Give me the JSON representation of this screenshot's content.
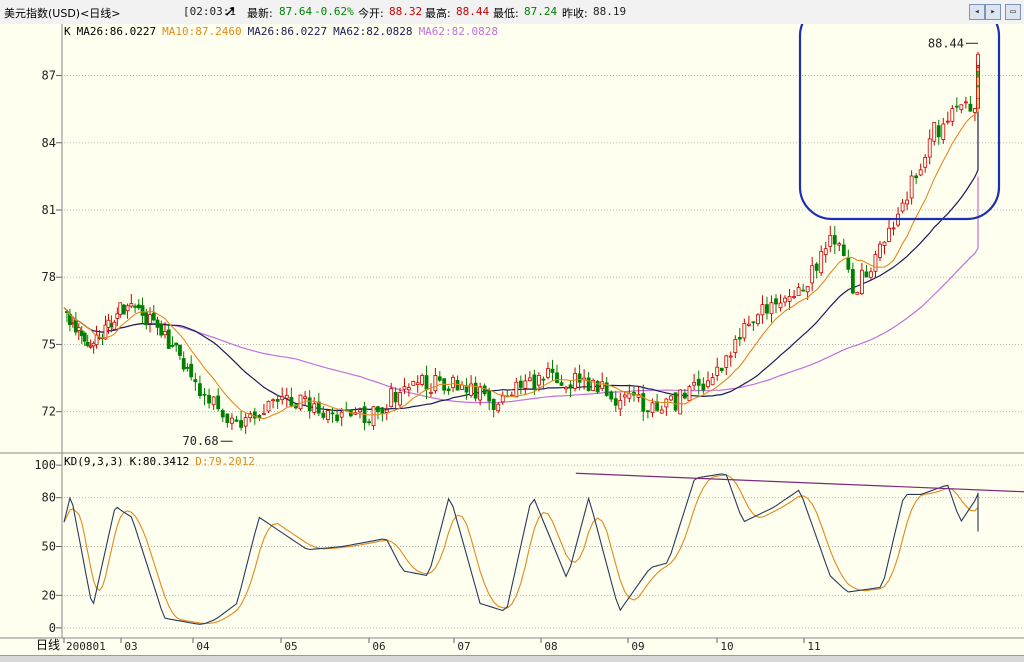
{
  "header": {
    "title": "美元指数(USD)<日线>",
    "time": "[02:03:1",
    "latest_label": "最新:",
    "latest_value": "87.64",
    "change": "-0.62%",
    "open_label": "今开:",
    "open_value": "88.32",
    "high_label": "最高:",
    "high_value": "88.44",
    "low_label": "最低:",
    "low_value": "87.24",
    "prev_label": "昨收:",
    "prev_value": "88.19",
    "buttons": [
      "◂",
      "▸",
      "▭"
    ]
  },
  "ma_legend": [
    {
      "text": "K",
      "color": "#000000"
    },
    {
      "text": "MA26:86.0227",
      "color": "#000000"
    },
    {
      "text": "MA10:87.2460",
      "color": "#e08a1e"
    },
    {
      "text": "MA26:86.0227",
      "color": "#1a1a5c"
    },
    {
      "text": "MA62:82.0828",
      "color": "#1a1a5c"
    },
    {
      "text": "MA62:82.0828",
      "color": "#c070e0"
    }
  ],
  "kd_legend": [
    {
      "text": "KD(9,3,3)",
      "color": "#000000"
    },
    {
      "text": "K:80.3412",
      "color": "#000000"
    },
    {
      "text": "D:79.2012",
      "color": "#e08a1e"
    }
  ],
  "annotations": {
    "high": "88.44",
    "low": "70.68"
  },
  "footer": {
    "period_label": "日线"
  },
  "colors": {
    "background": "#fffff0",
    "up": "#cc0000",
    "down": "#008000",
    "ma10": "#e08a1e",
    "ma26": "#1a1a5c",
    "ma62": "#c070e0",
    "k_line": "#2a3a5a",
    "d_line": "#e08a1e",
    "highlight": "#1c2fb5"
  },
  "chart_data": [
    {
      "type": "candlestick",
      "title": "美元指数(USD)<日线>",
      "x_tick_labels": [
        "200801",
        "03",
        "04",
        "05",
        "06",
        "07",
        "08",
        "09",
        "10",
        "11"
      ],
      "y_ticks": [
        72,
        75,
        78,
        81,
        84,
        87
      ],
      "ylim": [
        70.2,
        89.3
      ],
      "grid": true,
      "close_anchor_months": [
        0,
        0.5,
        1,
        1.5,
        2,
        2.5,
        3,
        3.5,
        4,
        4.5,
        5,
        5.5,
        6,
        6.5,
        7,
        7.5,
        8,
        8.5,
        9,
        9.3,
        9.6,
        10,
        10.5,
        11,
        11.5,
        11.9
      ],
      "close_anchor_values": [
        76.4,
        75.1,
        76.6,
        76.0,
        73.5,
        71.3,
        72.7,
        72.0,
        71.8,
        73.4,
        73.1,
        72.4,
        73.6,
        73.3,
        72.4,
        72.3,
        73.8,
        76.6,
        77.2,
        80.0,
        77.4,
        80.3,
        84.5,
        85.9,
        86.8,
        88.2
      ],
      "series": [
        {
          "name": "MA10",
          "value": 87.246
        },
        {
          "name": "MA26",
          "value": 86.0227
        },
        {
          "name": "MA62",
          "value": 82.0828
        }
      ],
      "annotations": [
        {
          "text": "88.44",
          "x_month": 11.85,
          "y": 88.44
        },
        {
          "text": "70.68",
          "x_month": 2.45,
          "y": 70.68
        }
      ],
      "highlight_box_months": [
        9.0,
        11.7
      ]
    },
    {
      "type": "line",
      "title": "KD(9,3,3)",
      "y_ticks": [
        0,
        20,
        50,
        80,
        100
      ],
      "ylim": [
        -5,
        105
      ],
      "k_anchor_months": [
        0,
        0.12,
        0.5,
        0.9,
        1.15,
        1.6,
        2.1,
        2.25,
        2.5,
        2.75,
        3.3,
        3.7,
        4.2,
        4.4,
        4.7,
        4.95,
        5.3,
        5.6,
        5.9,
        6.3,
        6.55,
        6.9,
        7.25,
        7.45,
        7.75,
        8.1,
        8.3,
        8.65,
        8.95,
        9.3,
        9.5,
        9.9,
        10.15,
        10.35,
        10.65,
        10.8,
        11.05,
        11.3,
        11.6,
        11.85
      ],
      "k_anchor_values": [
        65,
        82,
        12,
        75,
        68,
        6,
        2,
        5,
        15,
        68,
        48,
        50,
        55,
        35,
        32,
        82,
        15,
        10,
        82,
        30,
        80,
        10,
        37,
        40,
        92,
        95,
        65,
        74,
        85,
        32,
        22,
        25,
        82,
        82,
        88,
        65,
        85,
        58,
        70,
        80
      ],
      "d_value_last": 79.2012,
      "trendline": {
        "from": [
          6.4,
          95
        ],
        "to": [
          12.8,
          82
        ]
      }
    }
  ]
}
